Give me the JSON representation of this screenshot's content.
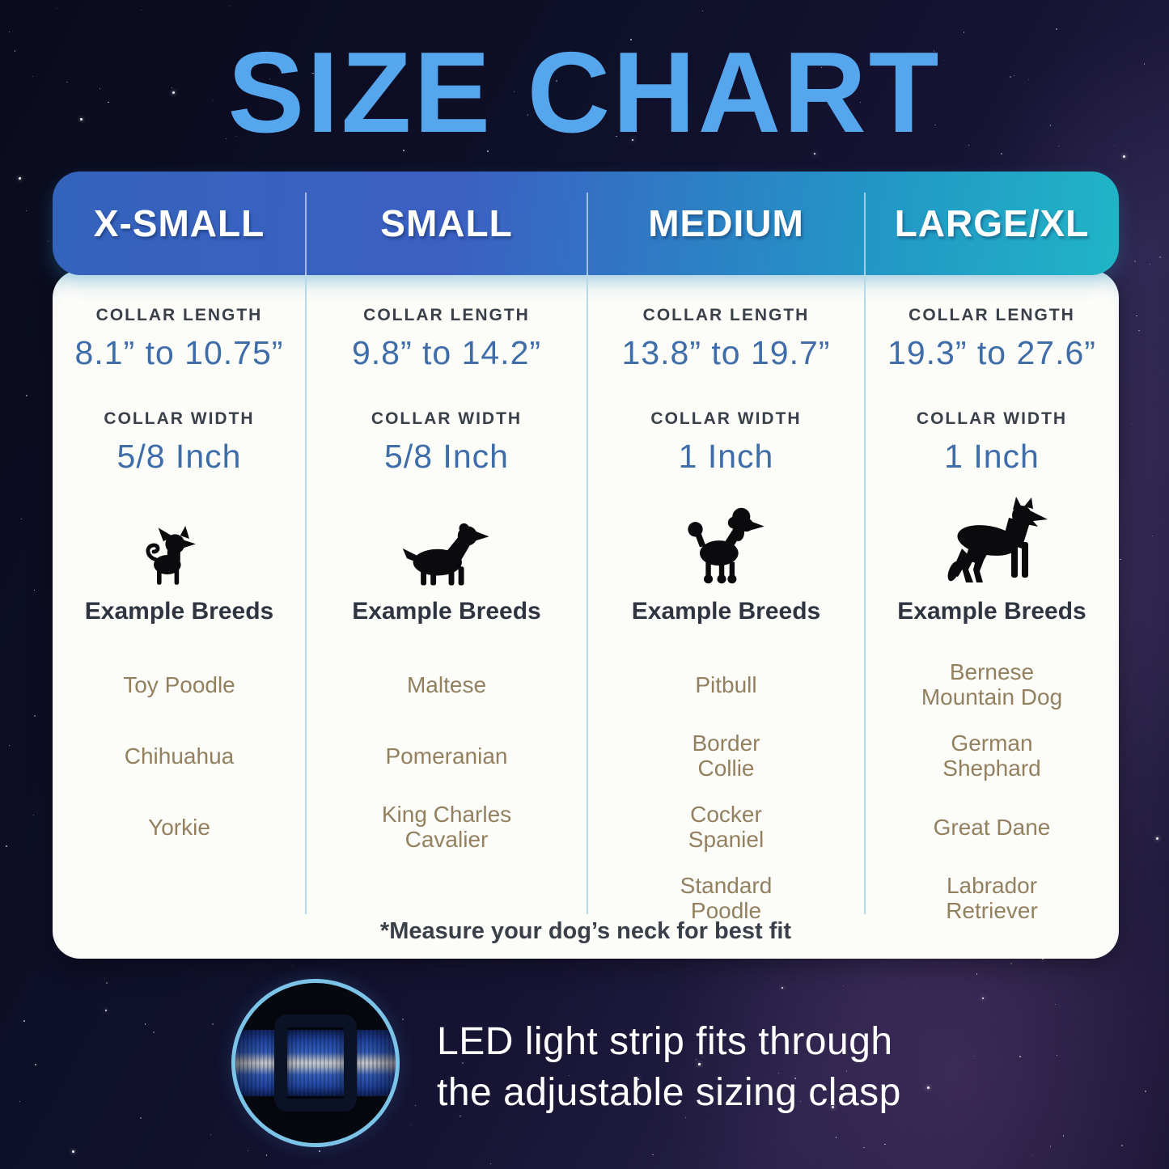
{
  "page": {
    "title": "SIZE CHART"
  },
  "table": {
    "columns": [
      {
        "size_label": "X-SMALL",
        "collar_length_label": "COLLAR LENGTH",
        "collar_length": "8.1” to 10.75”",
        "collar_width_label": "COLLAR WIDTH",
        "collar_width": "5/8 Inch",
        "dog_icon": "chihuahua-icon",
        "breeds_heading": "Example Breeds",
        "breeds": [
          "Toy Poodle",
          "Chihuahua",
          "Yorkie"
        ]
      },
      {
        "size_label": "SMALL",
        "collar_length_label": "COLLAR LENGTH",
        "collar_length": "9.8” to 14.2”",
        "collar_width_label": "COLLAR WIDTH",
        "collar_width": "5/8 Inch",
        "dog_icon": "cavalier-spaniel-icon",
        "breeds_heading": "Example Breeds",
        "breeds": [
          "Maltese",
          "Pomeranian",
          "King Charles\nCavalier"
        ]
      },
      {
        "size_label": "MEDIUM",
        "collar_length_label": "COLLAR LENGTH",
        "collar_length": "13.8” to 19.7”",
        "collar_width_label": "COLLAR WIDTH",
        "collar_width": "1 Inch",
        "dog_icon": "poodle-icon",
        "breeds_heading": "Example Breeds",
        "breeds": [
          "Pitbull",
          "Border\nCollie",
          "Cocker\nSpaniel",
          "Standard\nPoodle"
        ]
      },
      {
        "size_label": "LARGE/XL",
        "collar_length_label": "COLLAR LENGTH",
        "collar_length": "19.3” to 27.6”",
        "collar_width_label": "COLLAR WIDTH",
        "collar_width": "1 Inch",
        "dog_icon": "german-shepherd-icon",
        "breeds_heading": "Example Breeds",
        "breeds": [
          "Bernese\nMountain Dog",
          "German\nShephard",
          "Great Dane",
          "Labrador\nRetriever"
        ]
      }
    ],
    "footnote": "*Measure your dog’s neck for best fit"
  },
  "bottom": {
    "caption": "LED light strip fits through\nthe adjustable sizing clasp",
    "image": "collar-clasp-photo"
  },
  "colors": {
    "accent": "#55a6ec",
    "header_blue": "#3463bc",
    "header_teal": "#20b5c6",
    "value_blue": "#3e6da9",
    "breed_tan": "#93805f",
    "ink": "#3a4049",
    "divider": "#b5d9e7",
    "ring": "#7cc3e8"
  },
  "chart_data": {
    "type": "table",
    "title": "SIZE CHART",
    "columns": [
      "X-SMALL",
      "SMALL",
      "MEDIUM",
      "LARGE/XL"
    ],
    "rows": {
      "collar_length": [
        "8.1” to 10.75”",
        "9.8” to 14.2”",
        "13.8” to 19.7”",
        "19.3” to 27.6”"
      ],
      "collar_width": [
        "5/8 Inch",
        "5/8 Inch",
        "1 Inch",
        "1 Inch"
      ],
      "example_breeds": [
        [
          "Toy Poodle",
          "Chihuahua",
          "Yorkie"
        ],
        [
          "Maltese",
          "Pomeranian",
          "King Charles Cavalier"
        ],
        [
          "Pitbull",
          "Border Collie",
          "Cocker Spaniel",
          "Standard Poodle"
        ],
        [
          "Bernese Mountain Dog",
          "German Shephard",
          "Great Dane",
          "Labrador Retriever"
        ]
      ]
    },
    "footnote": "*Measure your dog’s neck for best fit"
  }
}
